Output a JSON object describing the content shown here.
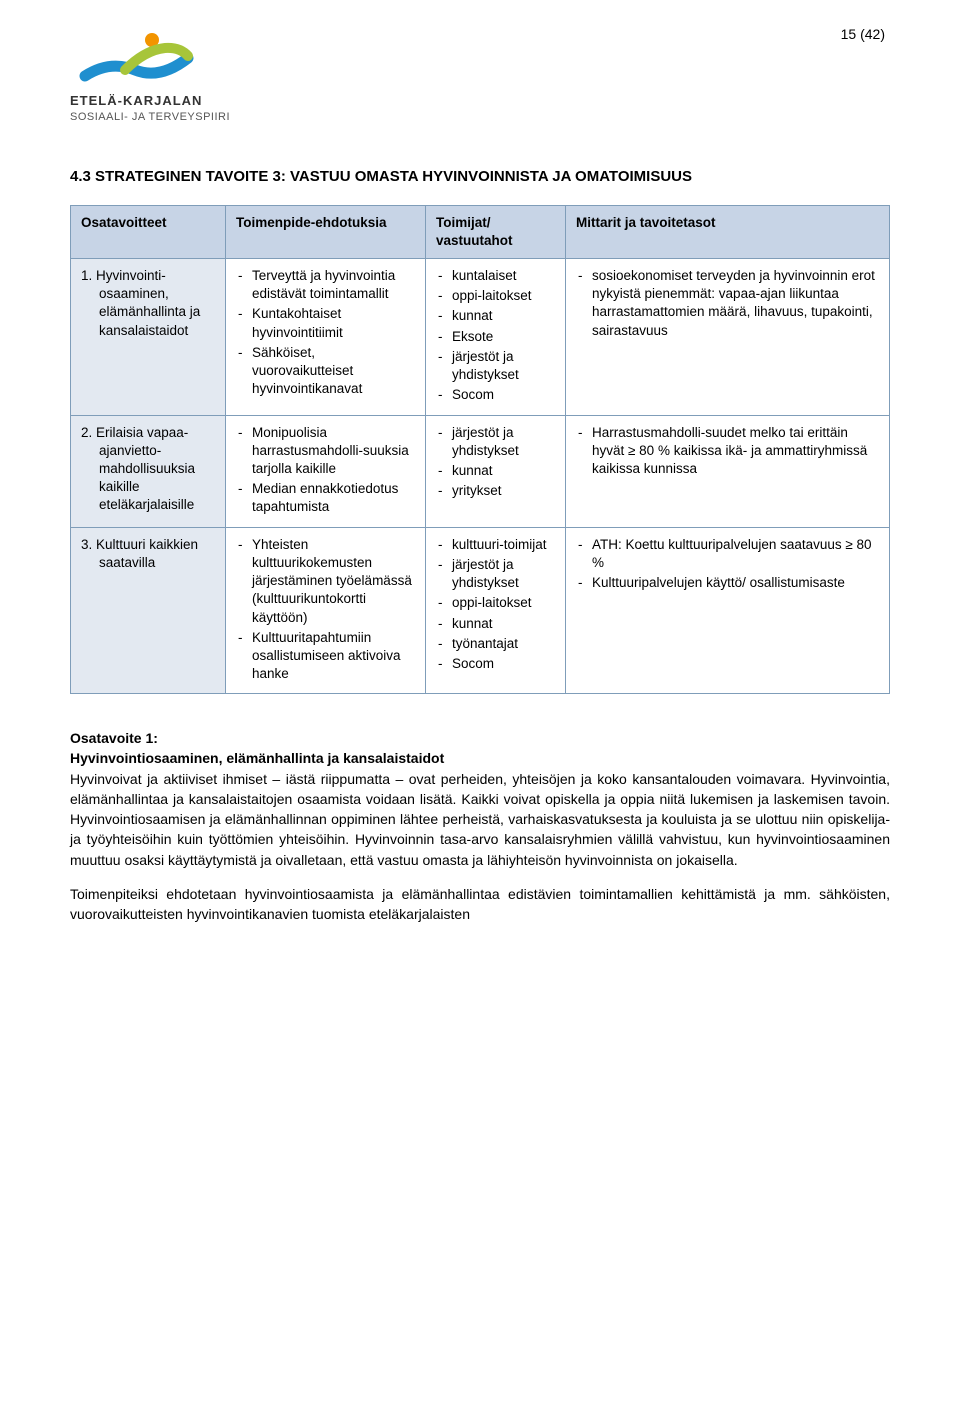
{
  "page_number": "15 (42)",
  "logo": {
    "line1": "ETELÄ-KARJALAN",
    "line2": "SOSIAALI- JA TERVEYSPIIRI",
    "colors": {
      "blue": "#1f8fcf",
      "green": "#a7c539",
      "orange": "#f29400"
    }
  },
  "section_title": "4.3 STRATEGINEN TAVOITE 3: VASTUU OMASTA HYVINVOINNISTA JA OMATOIMISUUS",
  "table": {
    "header_bg": "#c7d4e6",
    "label_bg": "#e3e9f1",
    "border_color": "#7f9db9",
    "headers": {
      "col1": "Osatavoitteet",
      "col2": "Toimenpide-ehdotuksia",
      "col3": "Toimijat/ vastuutahot",
      "col4": "Mittarit ja tavoitetasot"
    },
    "rows": [
      {
        "label_num": "1.",
        "label": "Hyvinvointi-osaaminen, elämänhallinta ja kansalaistaidot",
        "actions": [
          "Terveyttä ja hyvinvointia edistävät toimintamallit",
          "Kuntakohtaiset hyvinvointitiimit",
          "Sähköiset, vuorovaikutteiset hyvinvointikanavat"
        ],
        "actors": [
          "kuntalaiset",
          "oppi-laitokset",
          "kunnat",
          "Eksote",
          "järjestöt ja yhdistykset",
          "Socom"
        ],
        "metrics": [
          "sosioekonomiset terveyden ja hyvinvoinnin erot nykyistä pienemmät: vapaa-ajan liikuntaa harrastamattomien määrä, lihavuus, tupakointi, sairastavuus"
        ]
      },
      {
        "label_num": "2.",
        "label": "Erilaisia vapaa-ajanvietto-mahdollisuuksia kaikille eteläkarjalaisille",
        "actions": [
          "Monipuolisia harrastusmahdolli-suuksia tarjolla kaikille",
          "Median ennakkotiedotus tapahtumista"
        ],
        "actors": [
          "järjestöt ja yhdistykset",
          "kunnat",
          "yritykset"
        ],
        "metrics": [
          "Harrastusmahdolli-suudet melko tai erittäin hyvät ≥ 80 % kaikissa ikä- ja ammattiryhmissä kaikissa kunnissa"
        ]
      },
      {
        "label_num": "3.",
        "label": "Kulttuuri kaikkien saatavilla",
        "actions": [
          "Yhteisten kulttuurikokemusten järjestäminen työelämässä (kulttuurikuntokortti käyttöön)",
          "Kulttuuritapahtumiin osallistumiseen aktivoiva hanke"
        ],
        "actors": [
          "kulttuuri-toimijat",
          "järjestöt ja yhdistykset",
          "oppi-laitokset",
          "kunnat",
          "työnantajat",
          "Socom"
        ],
        "metrics": [
          "ATH: Koettu kulttuuripalvelujen saatavuus ≥ 80 %",
          "Kulttuuripalvelujen käyttö/ osallistumisaste"
        ]
      }
    ]
  },
  "osatavoite": {
    "heading1": "Osatavoite 1:",
    "heading2": "Hyvinvointiosaaminen, elämänhallinta ja kansalaistaidot",
    "para1": "Hyvinvoivat ja aktiiviset ihmiset – iästä riippumatta – ovat perheiden, yhteisöjen ja koko kansantalouden voimavara. Hyvinvointia, elämänhallintaa ja kansalaistaitojen osaamista voidaan lisätä. Kaikki voivat opiskella ja oppia niitä lukemisen ja laskemisen tavoin. Hyvinvointiosaamisen ja elämänhallinnan oppiminen lähtee perheistä, varhaiskasvatuksesta ja kouluista ja se ulottuu niin opiskelija- ja työyhteisöihin kuin työttömien yhteisöihin. Hyvinvoinnin tasa-arvo kansalaisryhmien välillä vahvistuu, kun hyvinvointiosaaminen muuttuu osaksi käyttäytymistä ja oivalletaan, että vastuu omasta ja lähiyhteisön hyvinvoinnista on jokaisella.",
    "para2": "Toimenpiteiksi ehdotetaan hyvinvointiosaamista ja elämänhallintaa edistävien toimintamallien kehittämistä ja mm. sähköisten, vuorovaikutteisten hyvinvointikanavien tuomista eteläkarjalaisten"
  }
}
